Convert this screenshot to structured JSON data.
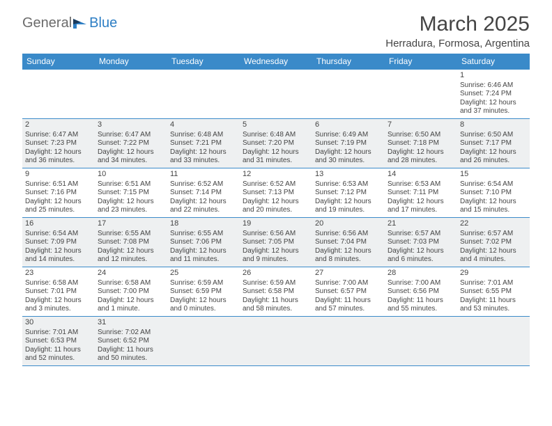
{
  "logo": {
    "text1": "General",
    "text2": "Blue"
  },
  "title": "March 2025",
  "subtitle": "Herradura, Formosa, Argentina",
  "colors": {
    "headerBg": "#3a8ac9",
    "altRowBg": "#eef0f1",
    "textColor": "#444444",
    "logoGray": "#6b6b6b",
    "logoBlue": "#2d7ec4",
    "pageBg": "#ffffff"
  },
  "dayHeaders": [
    "Sunday",
    "Monday",
    "Tuesday",
    "Wednesday",
    "Thursday",
    "Friday",
    "Saturday"
  ],
  "weeks": [
    [
      {
        "n": "",
        "sr": "",
        "ss": "",
        "dl": ""
      },
      {
        "n": "",
        "sr": "",
        "ss": "",
        "dl": ""
      },
      {
        "n": "",
        "sr": "",
        "ss": "",
        "dl": ""
      },
      {
        "n": "",
        "sr": "",
        "ss": "",
        "dl": ""
      },
      {
        "n": "",
        "sr": "",
        "ss": "",
        "dl": ""
      },
      {
        "n": "",
        "sr": "",
        "ss": "",
        "dl": ""
      },
      {
        "n": "1",
        "sr": "Sunrise: 6:46 AM",
        "ss": "Sunset: 7:24 PM",
        "dl": "Daylight: 12 hours and 37 minutes."
      }
    ],
    [
      {
        "n": "2",
        "sr": "Sunrise: 6:47 AM",
        "ss": "Sunset: 7:23 PM",
        "dl": "Daylight: 12 hours and 36 minutes."
      },
      {
        "n": "3",
        "sr": "Sunrise: 6:47 AM",
        "ss": "Sunset: 7:22 PM",
        "dl": "Daylight: 12 hours and 34 minutes."
      },
      {
        "n": "4",
        "sr": "Sunrise: 6:48 AM",
        "ss": "Sunset: 7:21 PM",
        "dl": "Daylight: 12 hours and 33 minutes."
      },
      {
        "n": "5",
        "sr": "Sunrise: 6:48 AM",
        "ss": "Sunset: 7:20 PM",
        "dl": "Daylight: 12 hours and 31 minutes."
      },
      {
        "n": "6",
        "sr": "Sunrise: 6:49 AM",
        "ss": "Sunset: 7:19 PM",
        "dl": "Daylight: 12 hours and 30 minutes."
      },
      {
        "n": "7",
        "sr": "Sunrise: 6:50 AM",
        "ss": "Sunset: 7:18 PM",
        "dl": "Daylight: 12 hours and 28 minutes."
      },
      {
        "n": "8",
        "sr": "Sunrise: 6:50 AM",
        "ss": "Sunset: 7:17 PM",
        "dl": "Daylight: 12 hours and 26 minutes."
      }
    ],
    [
      {
        "n": "9",
        "sr": "Sunrise: 6:51 AM",
        "ss": "Sunset: 7:16 PM",
        "dl": "Daylight: 12 hours and 25 minutes."
      },
      {
        "n": "10",
        "sr": "Sunrise: 6:51 AM",
        "ss": "Sunset: 7:15 PM",
        "dl": "Daylight: 12 hours and 23 minutes."
      },
      {
        "n": "11",
        "sr": "Sunrise: 6:52 AM",
        "ss": "Sunset: 7:14 PM",
        "dl": "Daylight: 12 hours and 22 minutes."
      },
      {
        "n": "12",
        "sr": "Sunrise: 6:52 AM",
        "ss": "Sunset: 7:13 PM",
        "dl": "Daylight: 12 hours and 20 minutes."
      },
      {
        "n": "13",
        "sr": "Sunrise: 6:53 AM",
        "ss": "Sunset: 7:12 PM",
        "dl": "Daylight: 12 hours and 19 minutes."
      },
      {
        "n": "14",
        "sr": "Sunrise: 6:53 AM",
        "ss": "Sunset: 7:11 PM",
        "dl": "Daylight: 12 hours and 17 minutes."
      },
      {
        "n": "15",
        "sr": "Sunrise: 6:54 AM",
        "ss": "Sunset: 7:10 PM",
        "dl": "Daylight: 12 hours and 15 minutes."
      }
    ],
    [
      {
        "n": "16",
        "sr": "Sunrise: 6:54 AM",
        "ss": "Sunset: 7:09 PM",
        "dl": "Daylight: 12 hours and 14 minutes."
      },
      {
        "n": "17",
        "sr": "Sunrise: 6:55 AM",
        "ss": "Sunset: 7:08 PM",
        "dl": "Daylight: 12 hours and 12 minutes."
      },
      {
        "n": "18",
        "sr": "Sunrise: 6:55 AM",
        "ss": "Sunset: 7:06 PM",
        "dl": "Daylight: 12 hours and 11 minutes."
      },
      {
        "n": "19",
        "sr": "Sunrise: 6:56 AM",
        "ss": "Sunset: 7:05 PM",
        "dl": "Daylight: 12 hours and 9 minutes."
      },
      {
        "n": "20",
        "sr": "Sunrise: 6:56 AM",
        "ss": "Sunset: 7:04 PM",
        "dl": "Daylight: 12 hours and 8 minutes."
      },
      {
        "n": "21",
        "sr": "Sunrise: 6:57 AM",
        "ss": "Sunset: 7:03 PM",
        "dl": "Daylight: 12 hours and 6 minutes."
      },
      {
        "n": "22",
        "sr": "Sunrise: 6:57 AM",
        "ss": "Sunset: 7:02 PM",
        "dl": "Daylight: 12 hours and 4 minutes."
      }
    ],
    [
      {
        "n": "23",
        "sr": "Sunrise: 6:58 AM",
        "ss": "Sunset: 7:01 PM",
        "dl": "Daylight: 12 hours and 3 minutes."
      },
      {
        "n": "24",
        "sr": "Sunrise: 6:58 AM",
        "ss": "Sunset: 7:00 PM",
        "dl": "Daylight: 12 hours and 1 minute."
      },
      {
        "n": "25",
        "sr": "Sunrise: 6:59 AM",
        "ss": "Sunset: 6:59 PM",
        "dl": "Daylight: 12 hours and 0 minutes."
      },
      {
        "n": "26",
        "sr": "Sunrise: 6:59 AM",
        "ss": "Sunset: 6:58 PM",
        "dl": "Daylight: 11 hours and 58 minutes."
      },
      {
        "n": "27",
        "sr": "Sunrise: 7:00 AM",
        "ss": "Sunset: 6:57 PM",
        "dl": "Daylight: 11 hours and 57 minutes."
      },
      {
        "n": "28",
        "sr": "Sunrise: 7:00 AM",
        "ss": "Sunset: 6:56 PM",
        "dl": "Daylight: 11 hours and 55 minutes."
      },
      {
        "n": "29",
        "sr": "Sunrise: 7:01 AM",
        "ss": "Sunset: 6:55 PM",
        "dl": "Daylight: 11 hours and 53 minutes."
      }
    ],
    [
      {
        "n": "30",
        "sr": "Sunrise: 7:01 AM",
        "ss": "Sunset: 6:53 PM",
        "dl": "Daylight: 11 hours and 52 minutes."
      },
      {
        "n": "31",
        "sr": "Sunrise: 7:02 AM",
        "ss": "Sunset: 6:52 PM",
        "dl": "Daylight: 11 hours and 50 minutes."
      },
      {
        "n": "",
        "sr": "",
        "ss": "",
        "dl": ""
      },
      {
        "n": "",
        "sr": "",
        "ss": "",
        "dl": ""
      },
      {
        "n": "",
        "sr": "",
        "ss": "",
        "dl": ""
      },
      {
        "n": "",
        "sr": "",
        "ss": "",
        "dl": ""
      },
      {
        "n": "",
        "sr": "",
        "ss": "",
        "dl": ""
      }
    ]
  ]
}
